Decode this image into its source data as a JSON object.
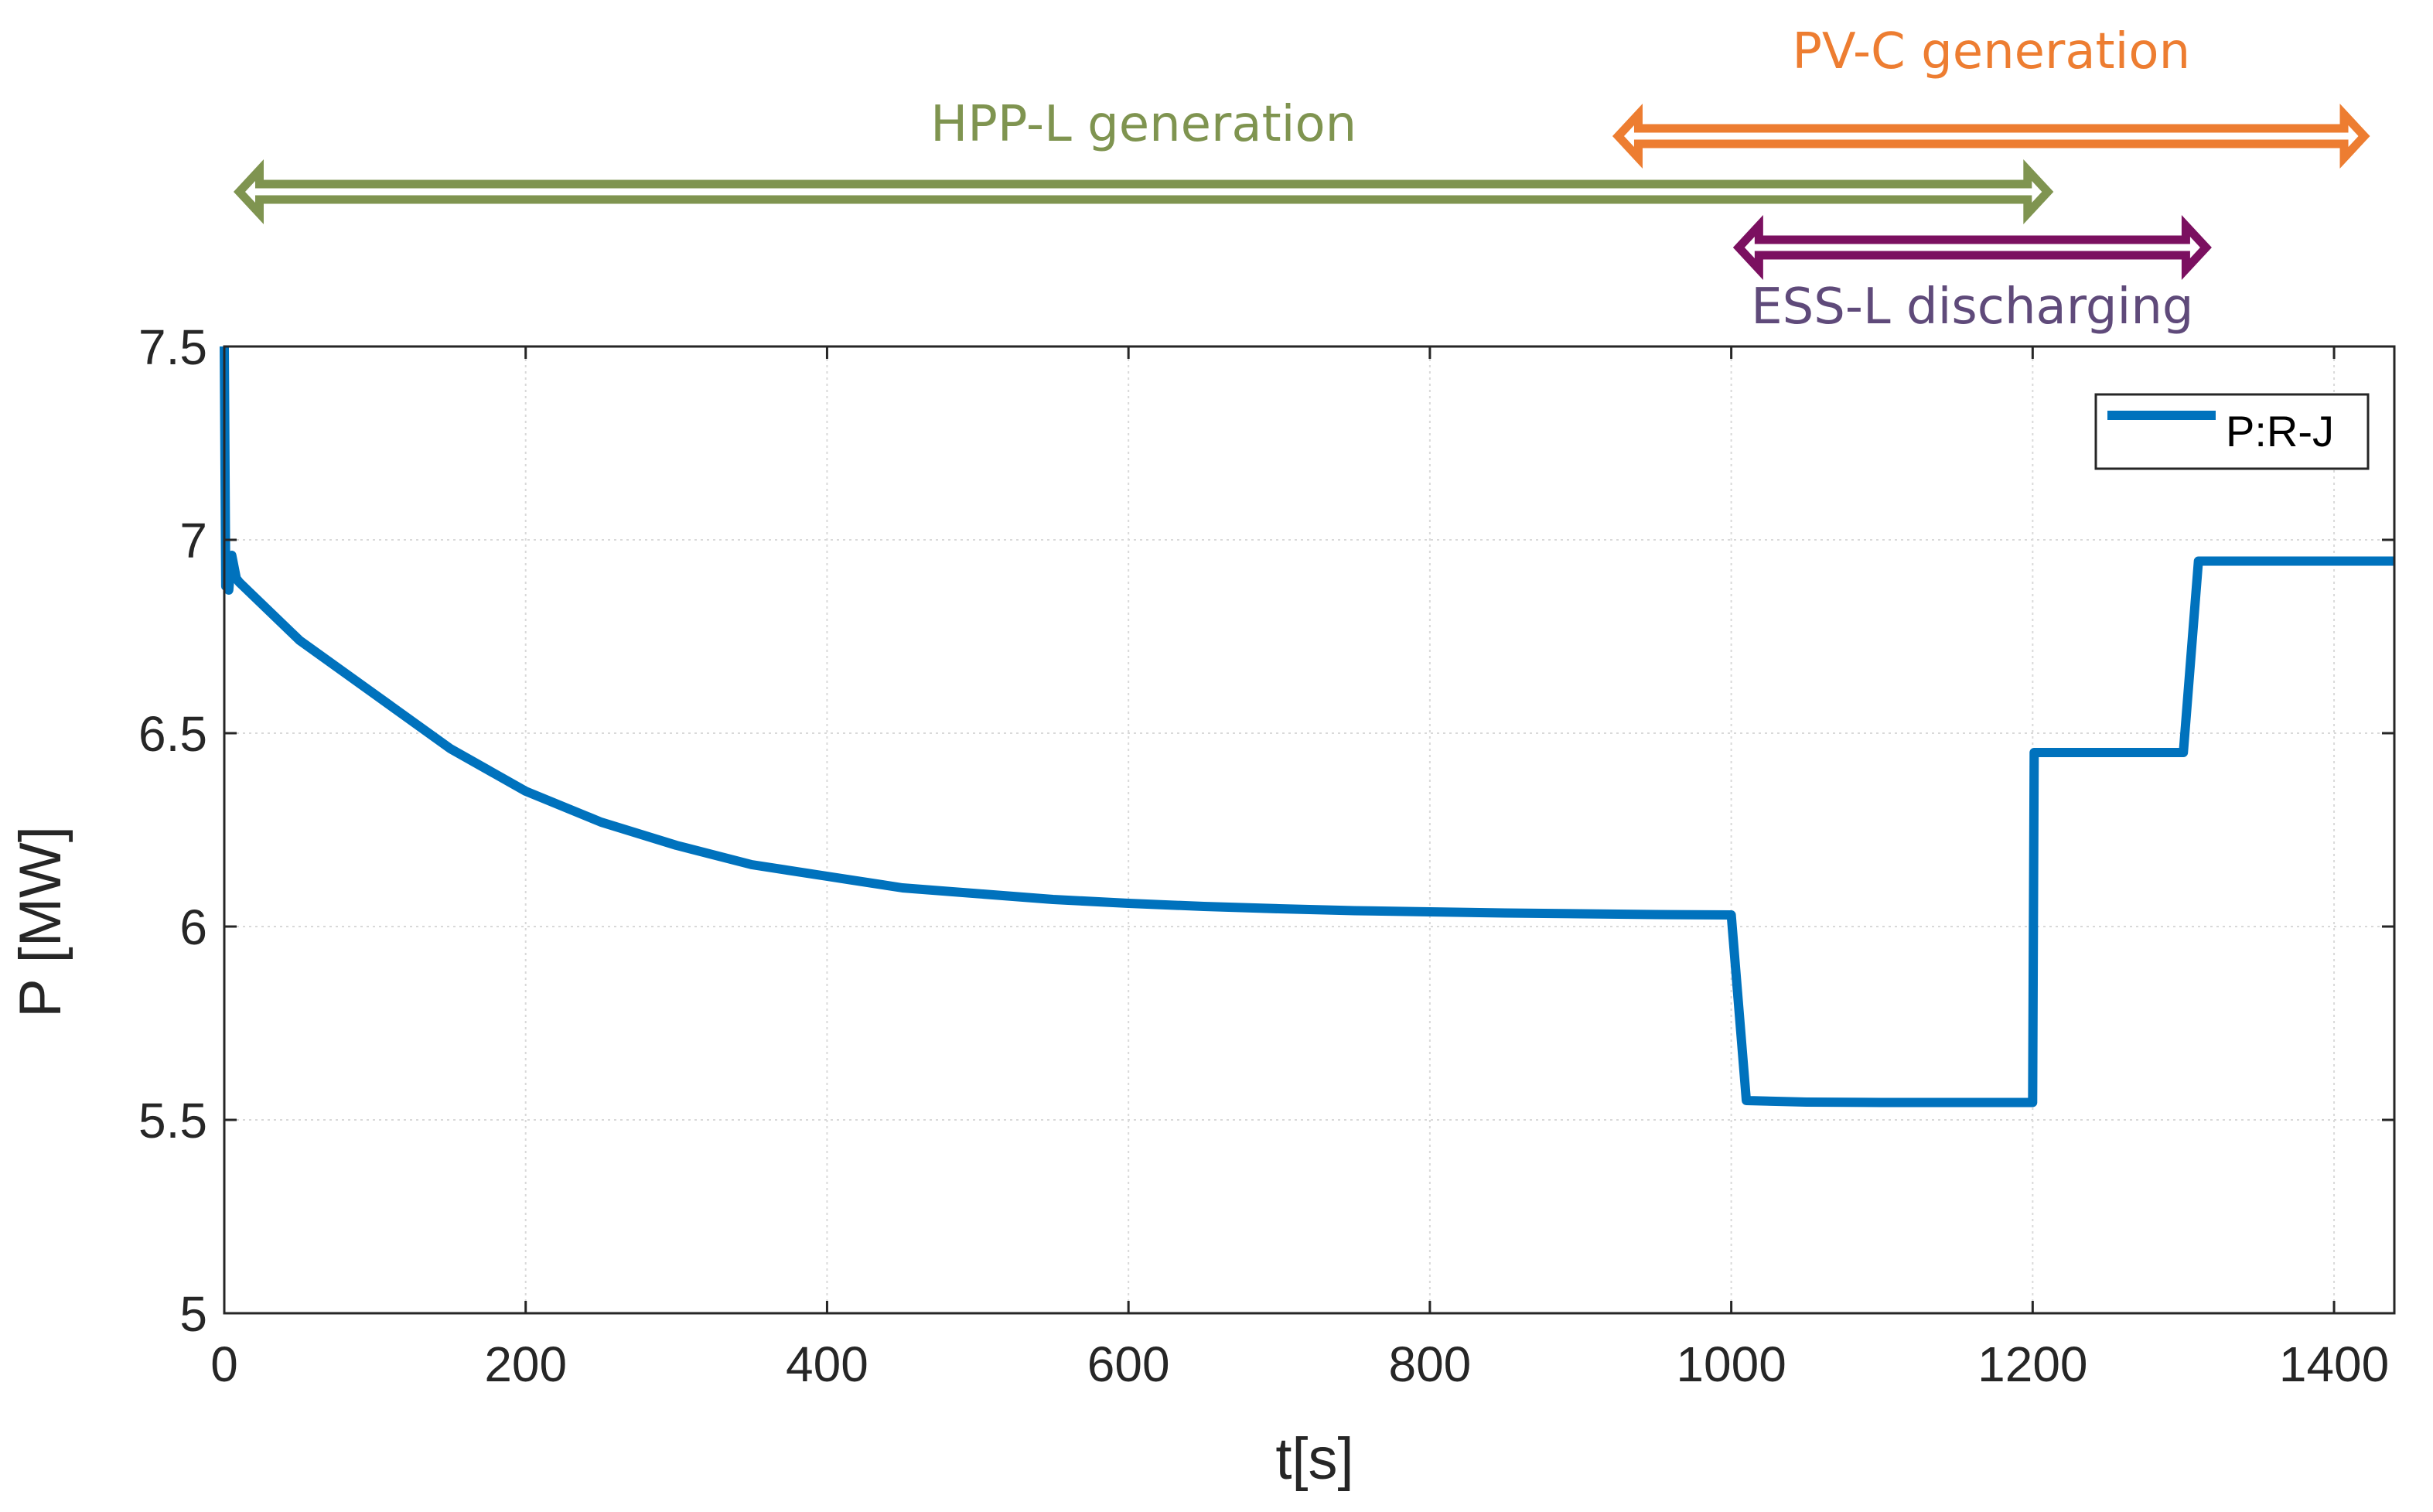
{
  "chart_data": {
    "type": "line",
    "xlabel": "t[s]",
    "ylabel": "P [MW]",
    "xlim": [
      0,
      1440
    ],
    "ylim": [
      5,
      7.5
    ],
    "xticks": [
      0,
      200,
      400,
      600,
      800,
      1000,
      1200,
      1400
    ],
    "yticks": [
      5,
      5.5,
      6,
      6.5,
      7,
      7.5
    ],
    "xtick_labels": [
      "0",
      "200",
      "400",
      "600",
      "800",
      "1000",
      "1200",
      "1400"
    ],
    "ytick_labels": [
      "5",
      "5.5",
      "6",
      "6.5",
      "7",
      "7.5"
    ],
    "grid": true,
    "legend": {
      "position": "top-right",
      "entries": [
        "P:R-J"
      ]
    },
    "series": [
      {
        "name": "P:R-J",
        "color": "#0072BD",
        "x": [
          0,
          1,
          2,
          3,
          5,
          8,
          10,
          50,
          100,
          150,
          200,
          250,
          300,
          350,
          400,
          450,
          500,
          550,
          600,
          650,
          700,
          750,
          800,
          850,
          900,
          950,
          1000,
          1010,
          1050,
          1100,
          1150,
          1200,
          1201,
          1210,
          1250,
          1300,
          1310,
          1350,
          1400,
          1440
        ],
        "y": [
          7.5,
          6.88,
          6.95,
          6.87,
          6.96,
          6.9,
          6.89,
          6.74,
          6.6,
          6.46,
          6.35,
          6.27,
          6.21,
          6.16,
          6.13,
          6.1,
          6.085,
          6.07,
          6.06,
          6.052,
          6.046,
          6.041,
          6.038,
          6.035,
          6.033,
          6.031,
          6.03,
          5.55,
          5.546,
          5.545,
          5.545,
          5.545,
          6.45,
          6.45,
          6.45,
          6.45,
          6.945,
          6.945,
          6.945,
          6.945
        ]
      }
    ],
    "annotations": [
      {
        "label": "HPP-L generation",
        "color": "#7F9450",
        "x_start": 10,
        "x_end": 1210
      },
      {
        "label": "PV-C generation",
        "color": "#ED7D31",
        "x_start": 925,
        "x_end": 1420
      },
      {
        "label": "ESS-L discharging",
        "color": "#7B1060",
        "text_color": "#5F4A7A",
        "x_start": 1005,
        "x_end": 1315
      }
    ]
  }
}
